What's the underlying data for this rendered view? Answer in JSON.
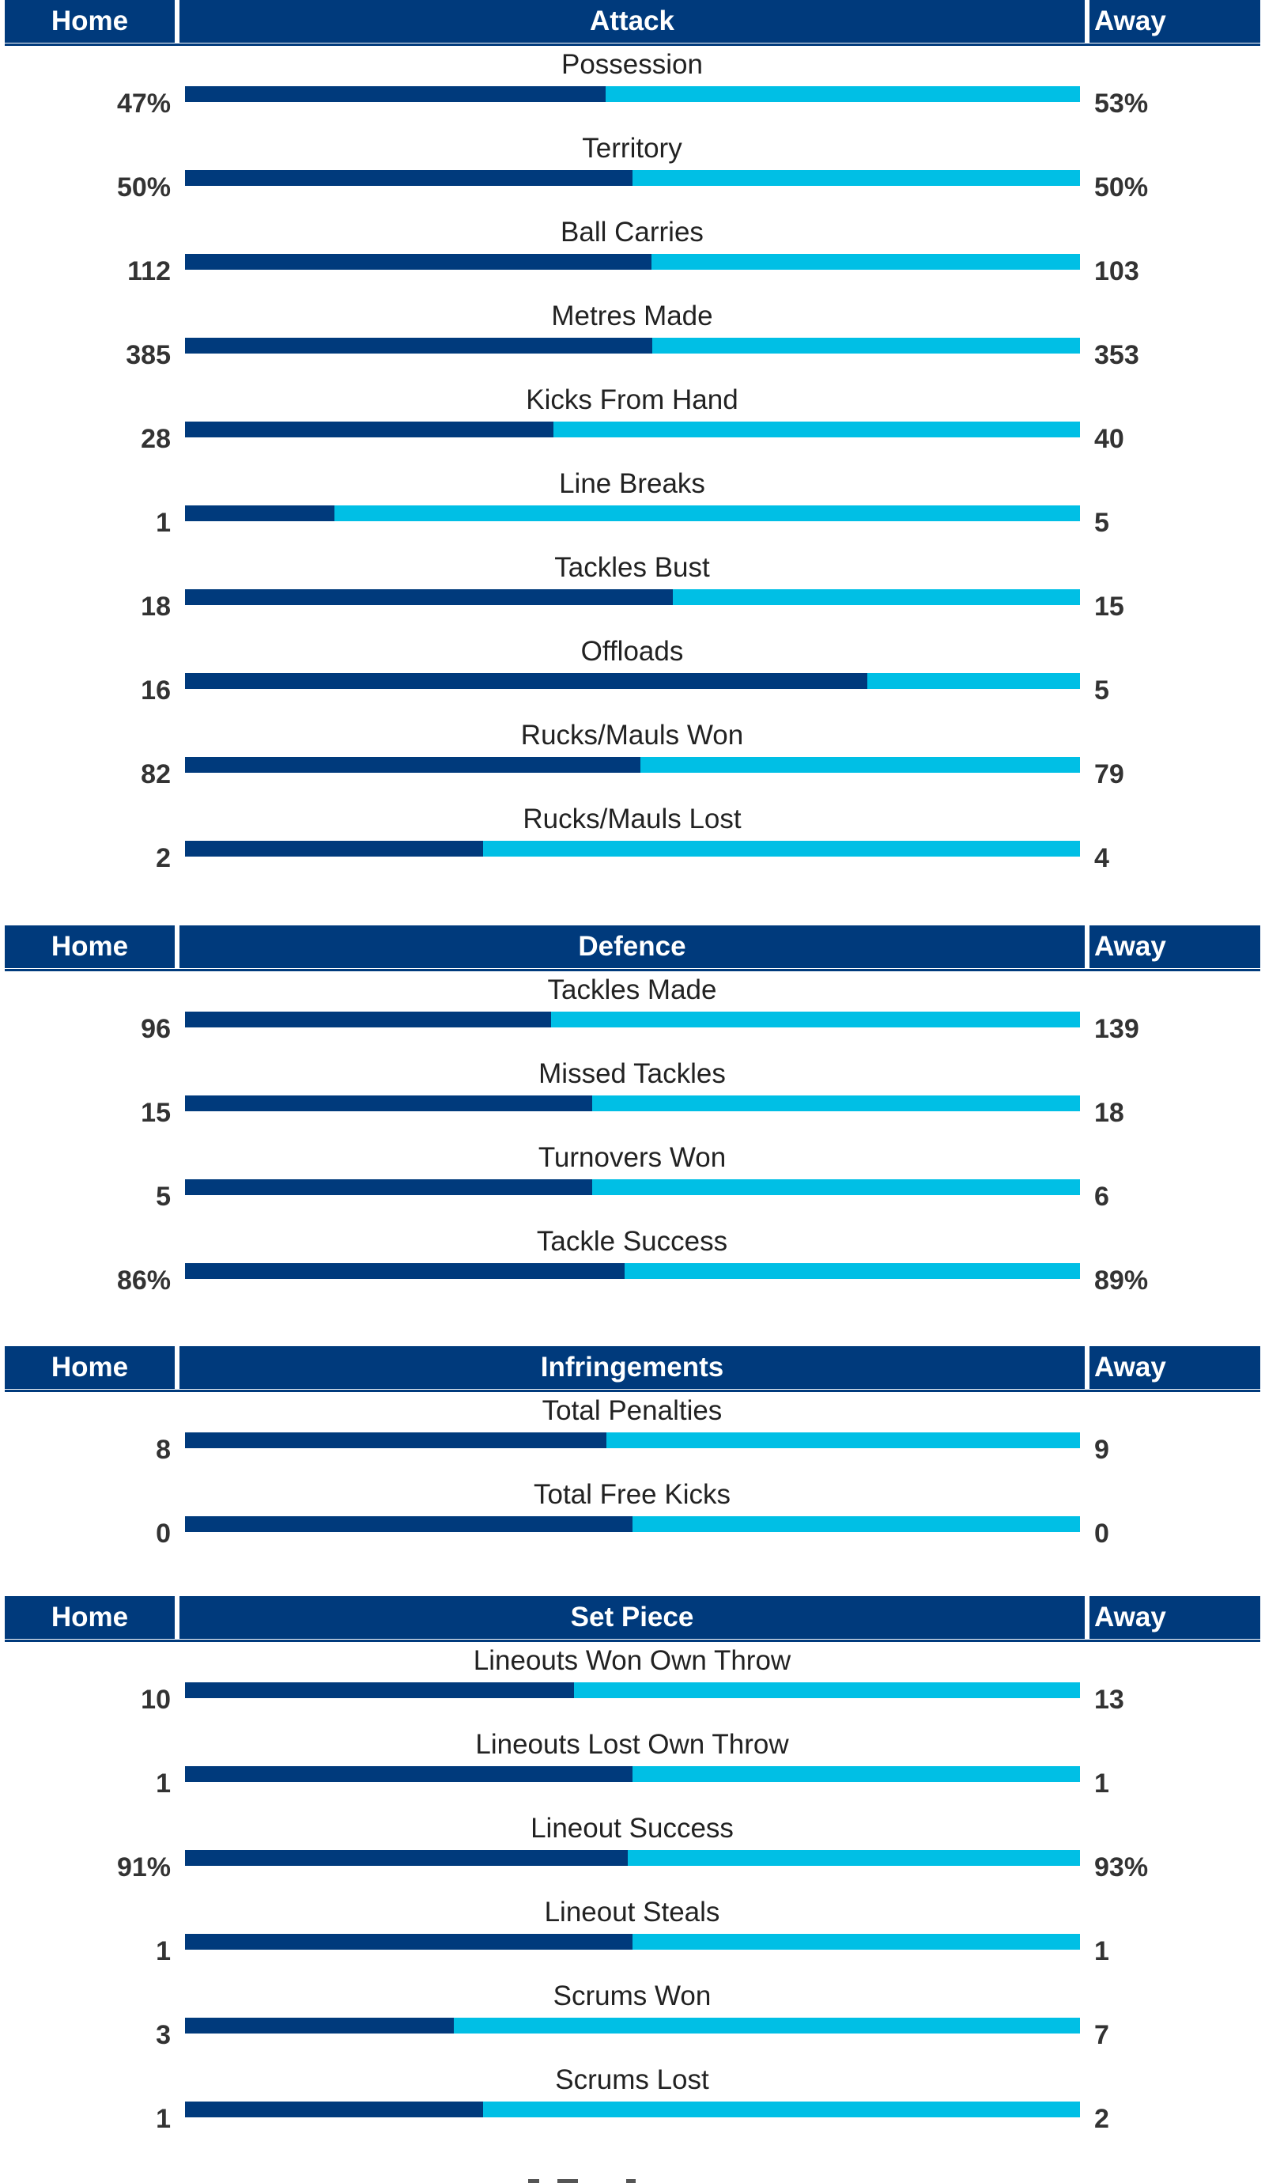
{
  "sections": [
    {
      "id": "attack",
      "home_label": "Home",
      "title": "Attack",
      "away_label": "Away",
      "stats": [
        {
          "label": "Possession",
          "home": "47%",
          "away": "53%",
          "home_share": 0.47
        },
        {
          "label": "Territory",
          "home": "50%",
          "away": "50%",
          "home_share": 0.5
        },
        {
          "label": "Ball Carries",
          "home": "112",
          "away": "103",
          "home_share": 0.521
        },
        {
          "label": "Metres Made",
          "home": "385",
          "away": "353",
          "home_share": 0.522
        },
        {
          "label": "Kicks From Hand",
          "home": "28",
          "away": "40",
          "home_share": 0.412
        },
        {
          "label": "Line Breaks",
          "home": "1",
          "away": "5",
          "home_share": 0.167
        },
        {
          "label": "Tackles Bust",
          "home": "18",
          "away": "15",
          "home_share": 0.545
        },
        {
          "label": "Offloads",
          "home": "16",
          "away": "5",
          "home_share": 0.762
        },
        {
          "label": "Rucks/Mauls Won",
          "home": "82",
          "away": "79",
          "home_share": 0.509
        },
        {
          "label": "Rucks/Mauls Lost",
          "home": "2",
          "away": "4",
          "home_share": 0.333
        }
      ]
    },
    {
      "id": "defence",
      "home_label": "Home",
      "title": "Defence",
      "away_label": "Away",
      "stats": [
        {
          "label": "Tackles Made",
          "home": "96",
          "away": "139",
          "home_share": 0.409
        },
        {
          "label": "Missed Tackles",
          "home": "15",
          "away": "18",
          "home_share": 0.455
        },
        {
          "label": "Turnovers Won",
          "home": "5",
          "away": "6",
          "home_share": 0.455
        },
        {
          "label": "Tackle Success",
          "home": "86%",
          "away": "89%",
          "home_share": 0.491
        }
      ]
    },
    {
      "id": "infringements",
      "home_label": "Home",
      "title": "Infringements",
      "away_label": "Away",
      "stats": [
        {
          "label": "Total Penalties",
          "home": "8",
          "away": "9",
          "home_share": 0.471
        },
        {
          "label": "Total Free Kicks",
          "home": "0",
          "away": "0",
          "home_share": 0.5
        }
      ]
    },
    {
      "id": "set-piece",
      "home_label": "Home",
      "title": "Set Piece",
      "away_label": "Away",
      "stats": [
        {
          "label": "Lineouts Won Own Throw",
          "home": "10",
          "away": "13",
          "home_share": 0.435
        },
        {
          "label": "Lineouts Lost Own Throw",
          "home": "1",
          "away": "1",
          "home_share": 0.5
        },
        {
          "label": "Lineout Success",
          "home": "91%",
          "away": "93%",
          "home_share": 0.495
        },
        {
          "label": "Lineout Steals",
          "home": "1",
          "away": "1",
          "home_share": 0.5
        },
        {
          "label": "Scrums Won",
          "home": "3",
          "away": "7",
          "home_share": 0.3
        },
        {
          "label": "Scrums Lost",
          "home": "1",
          "away": "2",
          "home_share": 0.333
        }
      ]
    }
  ],
  "colors": {
    "home": "#003a7c",
    "away": "#00bfe5",
    "header_bg": "#003a7c"
  }
}
